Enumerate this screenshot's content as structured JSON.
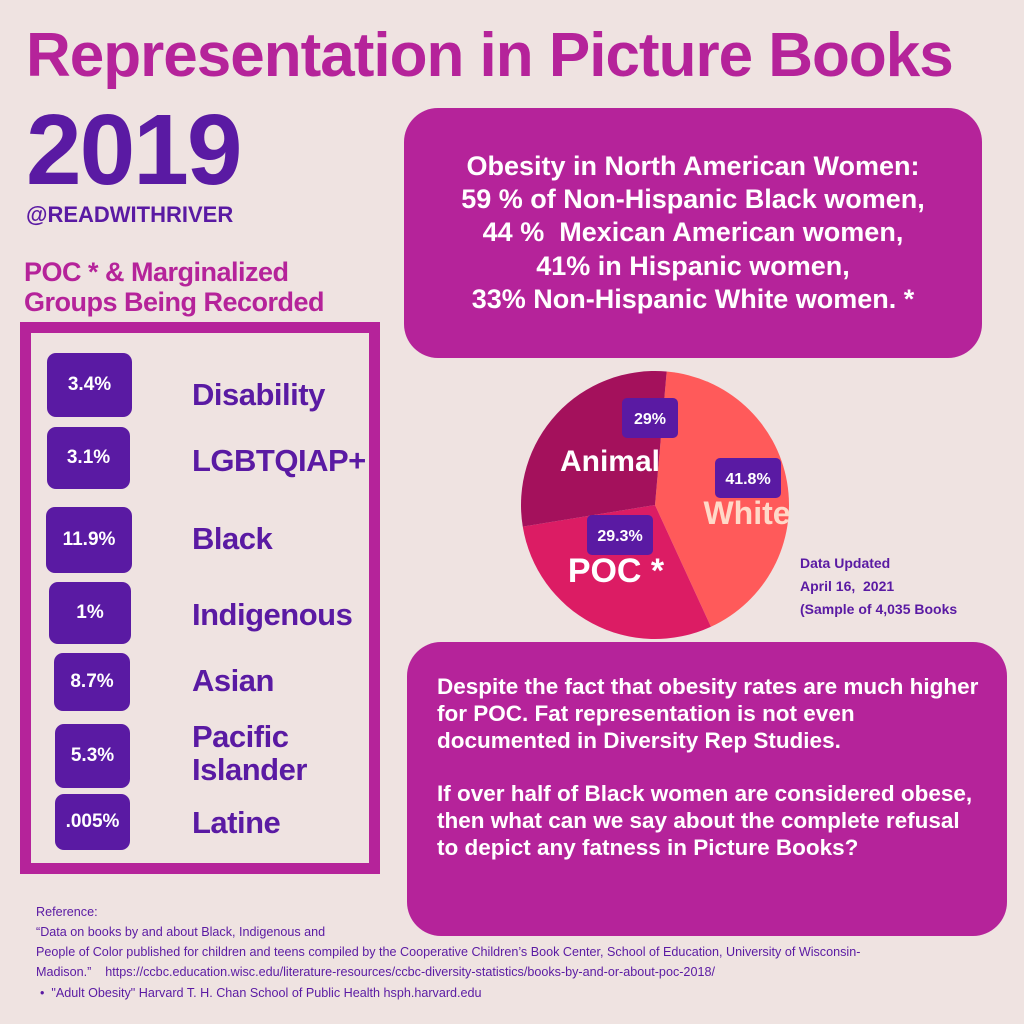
{
  "title": "Representation in Picture Books",
  "year": "2019",
  "handle": "@READWITHRIVER",
  "groups_heading": [
    "POC * & Marginalized",
    "Groups Being Recorded"
  ],
  "groups": [
    {
      "value": "3.4%",
      "label": "Disability"
    },
    {
      "value": "3.1%",
      "label": "LGBTQIAP+"
    },
    {
      "value": "11.9%",
      "label": "Black"
    },
    {
      "value": "1%",
      "label": "Indigenous"
    },
    {
      "value": "8.7%",
      "label": "Asian"
    },
    {
      "value": "5.3%",
      "label": "Pacific Islander",
      "lines": [
        "Pacific",
        "Islander"
      ]
    },
    {
      "value": ".005%",
      "label": "Latine"
    }
  ],
  "obesity_box": {
    "lines": [
      "Obesity in North American Women:",
      "59 % of Non-Hispanic Black women,",
      "44 %  Mexican American women,",
      "41% in Hispanic women,",
      "33% Non-Hispanic White women. *"
    ]
  },
  "chart_data": {
    "type": "pie",
    "title": "",
    "slices": [
      {
        "name": "White",
        "label": "White",
        "value": 41.8,
        "value_label": "41.8%",
        "color": "#ff5a5a"
      },
      {
        "name": "POC",
        "label": "POC *",
        "value": 29.3,
        "value_label": "29.3%",
        "color": "#dc1c64"
      },
      {
        "name": "Animal",
        "label": "Animal",
        "value": 29,
        "value_label": "29%",
        "color": "#a4115c"
      }
    ],
    "value_badge_color": "#5a1aa3",
    "start": "clockwise from top"
  },
  "data_updated": {
    "line1": "Data Updated",
    "line2": "April 16,  2021",
    "line3": "(Sample of 4,035 Books"
  },
  "note": {
    "para1": " Despite the fact that obesity rates are much higher for POC. Fat representation is not even documented in Diversity Rep Studies.",
    "para2": " If over half of Black women are considered obese, then what can we say about the complete refusal to depict any fatness in Picture Books?"
  },
  "reference": {
    "heading": "Reference:",
    "line1": "“Data on books by and about Black, Indigenous and",
    "line2": "People of Color published for children and teens compiled by the Cooperative Children’s Book Center, School of Education, University of Wisconsin-",
    "line3": "Madison.”    https://ccbc.education.wisc.edu/literature-resources/ccbc-diversity-statistics/books-by-and-or-about-poc-2018/",
    "bullet": "\"Adult Obesity\" Harvard T. H. Chan School of Public Health hsph.harvard.edu"
  },
  "colors": {
    "background": "#efe3e1",
    "magenta": "#b5239a",
    "purple": "#5a1aa3"
  }
}
